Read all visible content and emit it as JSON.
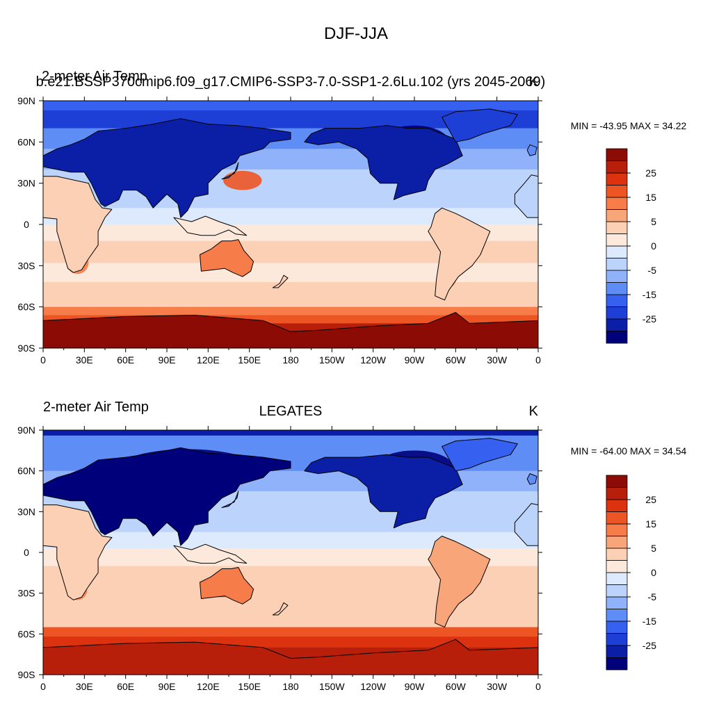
{
  "figure": {
    "title": "DJF-JJA"
  },
  "colorbar": {
    "colors": [
      "#00007a",
      "#0a1fa6",
      "#1e3fd6",
      "#3560f0",
      "#5d8df5",
      "#8fb2fa",
      "#bcd4fb",
      "#dde9fc",
      "#fde9dc",
      "#fcd0b4",
      "#f9a57a",
      "#f67c4a",
      "#ee5524",
      "#dc3210",
      "#b81f0a",
      "#8c0b05"
    ],
    "labels": [
      "25",
      "15",
      "5",
      "0",
      "-5",
      "-15",
      "-25"
    ]
  },
  "x_ticks": [
    "0",
    "30E",
    "60E",
    "90E",
    "120E",
    "150E",
    "180",
    "150W",
    "120W",
    "90W",
    "60W",
    "30W",
    "0"
  ],
  "y_ticks": [
    "90N",
    "60N",
    "30N",
    "0",
    "30S",
    "60S",
    "90S"
  ],
  "panels": [
    {
      "left_title": "2-meter Air Temp",
      "center_title": "b.e21.BSSP370cmip6.f09_g17.CMIP6-SSP3-7.0-SSP1-2.6Lu.102 (yrs 2045-2069)",
      "right_title": "K",
      "stats": "MIN = -43.95 MAX =  34.22"
    },
    {
      "left_title": "2-meter Air Temp",
      "center_title": "LEGATES",
      "right_title": "K",
      "stats": "MIN = -64.00 MAX =  34.54"
    }
  ],
  "chart_data": [
    {
      "type": "heatmap",
      "title": "b.e21.BSSP370cmip6.f09_g17.CMIP6-SSP3-7.0-SSP1-2.6Lu.102 (yrs 2045-2069)",
      "variable": "2-meter Air Temp",
      "units": "K",
      "season_difference": "DJF-JJA",
      "projection": "cylindrical equidistant, centered on 180",
      "x_ticks": [
        "0",
        "30E",
        "60E",
        "90E",
        "120E",
        "150E",
        "180",
        "150W",
        "120W",
        "90W",
        "60W",
        "30W",
        "0"
      ],
      "y_ticks": [
        "90N",
        "60N",
        "30N",
        "0",
        "30S",
        "60S",
        "90S"
      ],
      "min": -43.95,
      "max": 34.22,
      "contour_levels": [
        -35,
        -30,
        -25,
        -20,
        -15,
        -10,
        -5,
        -2,
        0,
        2,
        5,
        10,
        15,
        20,
        25,
        30
      ],
      "zonal_band_values": {
        "arctic": -30,
        "northern_midlat_land": -35,
        "northern_subtropics": -10,
        "equator": -2,
        "southern_subtropics": 5,
        "southern_midlat": 5,
        "southern_ocean": 15,
        "antarctica": 25
      }
    },
    {
      "type": "heatmap",
      "title": "LEGATES",
      "variable": "2-meter Air Temp",
      "units": "K",
      "season_difference": "DJF-JJA",
      "projection": "cylindrical equidistant, centered on 180",
      "x_ticks": [
        "0",
        "30E",
        "60E",
        "90E",
        "120E",
        "150E",
        "180",
        "150W",
        "120W",
        "90W",
        "60W",
        "30W",
        "0"
      ],
      "y_ticks": [
        "90N",
        "60N",
        "30N",
        "0",
        "30S",
        "60S",
        "90S"
      ],
      "min": -64.0,
      "max": 34.54,
      "contour_levels": [
        -35,
        -30,
        -25,
        -20,
        -15,
        -10,
        -5,
        -2,
        0,
        2,
        5,
        10,
        15,
        20,
        25,
        30
      ],
      "zonal_band_values": {
        "arctic": -25,
        "northern_midlat_land": -35,
        "northern_subtropics": -10,
        "equator": 0,
        "southern_subtropics": 5,
        "southern_midlat": 5,
        "southern_ocean": 20,
        "antarctica": 25
      }
    }
  ]
}
